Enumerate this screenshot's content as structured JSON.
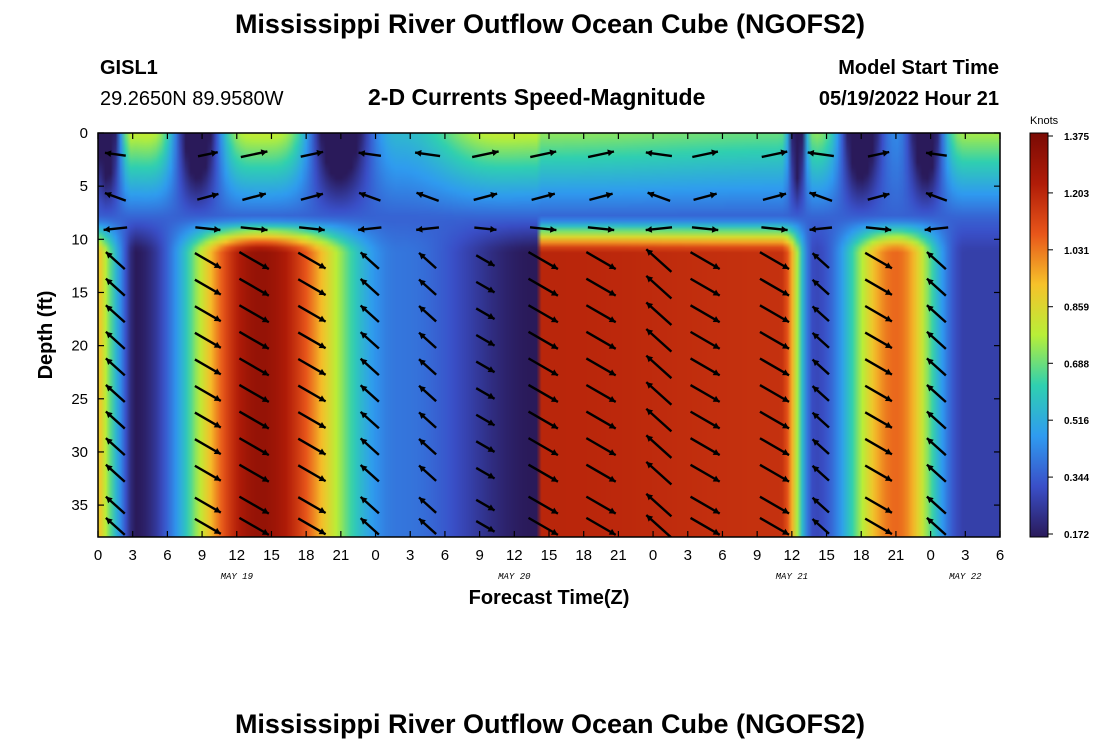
{
  "header": {
    "title": "Mississippi River Outflow Ocean Cube (NGOFS2)",
    "station_id": "GISL1",
    "station_coords": "29.2650N  89.9580W",
    "subtitle": "2-D Currents Speed-Magnitude",
    "model_start_label": "Model Start Time",
    "model_start_value": "05/19/2022 Hour 21"
  },
  "footer": {
    "title": "Mississippi River Outflow Ocean Cube (NGOFS2)"
  },
  "chart_data": {
    "type": "heatmap",
    "title": "2-D Currents Speed-Magnitude",
    "xlabel": "Forecast Time(Z)",
    "ylabel": "Depth (ft)",
    "x_unit": "hours from 00Z May 19",
    "xlim": [
      0,
      78
    ],
    "ylim": [
      38,
      0
    ],
    "x_tick_values": [
      0,
      3,
      6,
      9,
      12,
      15,
      18,
      21,
      24,
      27,
      30,
      33,
      36,
      39,
      42,
      45,
      48,
      51,
      54,
      57,
      60,
      63,
      66,
      69,
      72,
      75,
      78
    ],
    "x_tick_labels": [
      "0",
      "3",
      "6",
      "9",
      "12",
      "15",
      "18",
      "21",
      "0",
      "3",
      "6",
      "9",
      "12",
      "15",
      "18",
      "21",
      "0",
      "3",
      "6",
      "9",
      "12",
      "15",
      "18",
      "21",
      "0",
      "3",
      "6"
    ],
    "date_labels": [
      {
        "x": 12,
        "label": "MAY 19"
      },
      {
        "x": 36,
        "label": "MAY 20"
      },
      {
        "x": 60,
        "label": "MAY 21"
      },
      {
        "x": 75,
        "label": "MAY 22"
      }
    ],
    "y_ticks": [
      0,
      5,
      10,
      15,
      20,
      25,
      30,
      35
    ],
    "colorbar": {
      "title": "Knots",
      "ticks": [
        1.375,
        1.203,
        1.031,
        0.859,
        0.688,
        0.516,
        0.344,
        0.172
      ],
      "min": 0.172,
      "max": 1.375
    },
    "speed_maxima": [
      {
        "time": 14,
        "speed": 1.3
      },
      {
        "time": 38,
        "speed": 1.2
      },
      {
        "time": 59,
        "speed": 1.17
      },
      {
        "time": 69,
        "speed": 1.05
      }
    ],
    "speed_minima": [
      {
        "time": 3,
        "speed": 0.17
      },
      {
        "time": 26,
        "speed": 0.4
      },
      {
        "time": 38,
        "speed": 0.17
      },
      {
        "time": 62,
        "speed": 0.3
      },
      {
        "time": 75,
        "speed": 0.28
      }
    ],
    "vector_times": [
      1.5,
      9.5,
      13.5,
      18.5,
      23.5,
      28.5,
      33.5,
      38.5,
      43.5,
      48.5,
      52.5,
      58.5,
      62.5,
      67.5,
      72.5
    ],
    "vector_depths": [
      2,
      6,
      9,
      12,
      14.5,
      17,
      19.5,
      22,
      24.5,
      27,
      29.5,
      32,
      35,
      37
    ],
    "colors": {
      "colormap": [
        "#2a1a5a",
        "#3a4fc8",
        "#2f9bf0",
        "#2fd0b0",
        "#b8ef38",
        "#f6c22a",
        "#e8561a",
        "#b01c08",
        "#7a0a04"
      ],
      "arrow": "#000000"
    }
  }
}
